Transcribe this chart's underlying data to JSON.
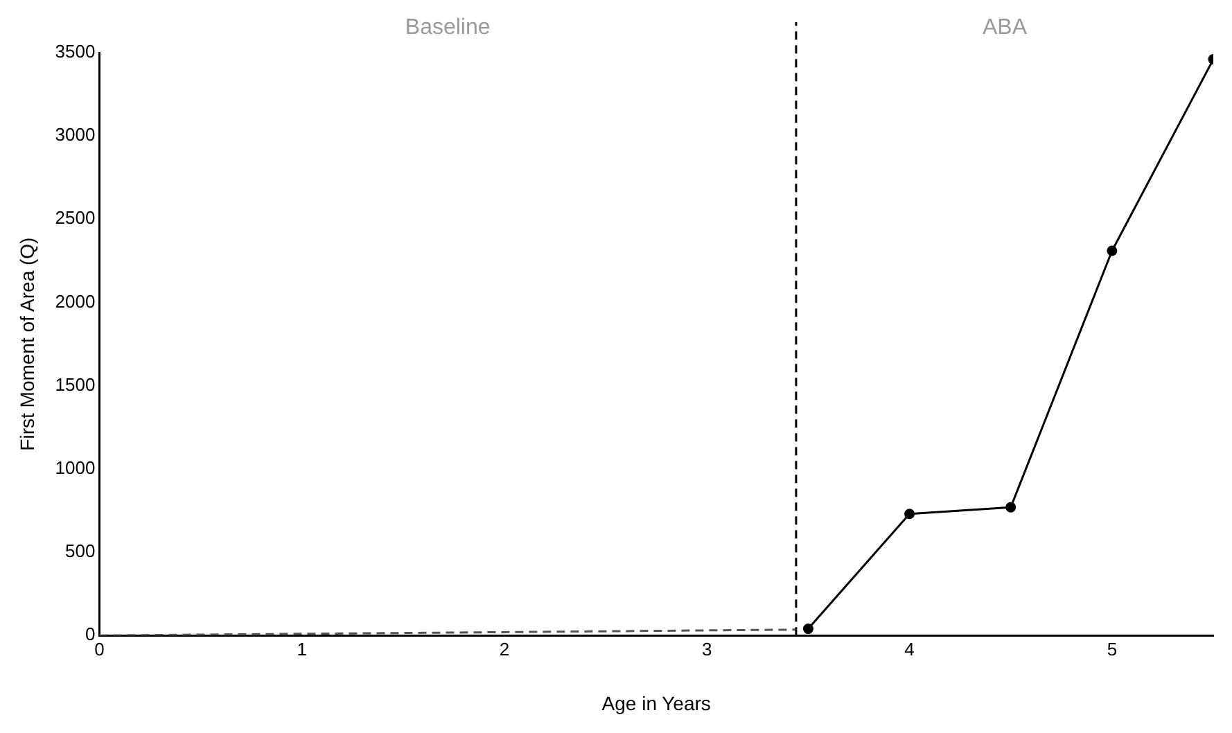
{
  "chart_data": {
    "type": "line",
    "xlabel": "Age in Years",
    "ylabel": "First Moment of Area (Q)",
    "xlim": [
      0,
      5.5
    ],
    "xticks": [
      0,
      1,
      2,
      3,
      4,
      5
    ],
    "ylim": [
      0,
      3500
    ],
    "yticks": [
      0,
      500,
      1000,
      1500,
      2000,
      2500,
      3000,
      3500
    ],
    "grid": false,
    "legend": false,
    "series": [
      {
        "color": "#555555",
        "x": [
          0,
          1,
          2,
          3.44
        ],
        "values": [
          0,
          10,
          20,
          35
        ],
        "line_style": "dashed",
        "marker": "none"
      },
      {
        "color": "#000000",
        "x": [
          3.5,
          4,
          4.5,
          5,
          5.5
        ],
        "values": [
          40,
          730,
          770,
          2310,
          3460
        ],
        "line_style": "solid",
        "marker": "circle"
      }
    ],
    "ref_lines": [
      {
        "axis": "x",
        "value": 3.44,
        "color": "#000000",
        "line_style": "dashed"
      }
    ],
    "annotations": [
      "Baseline",
      "ABA"
    ]
  }
}
